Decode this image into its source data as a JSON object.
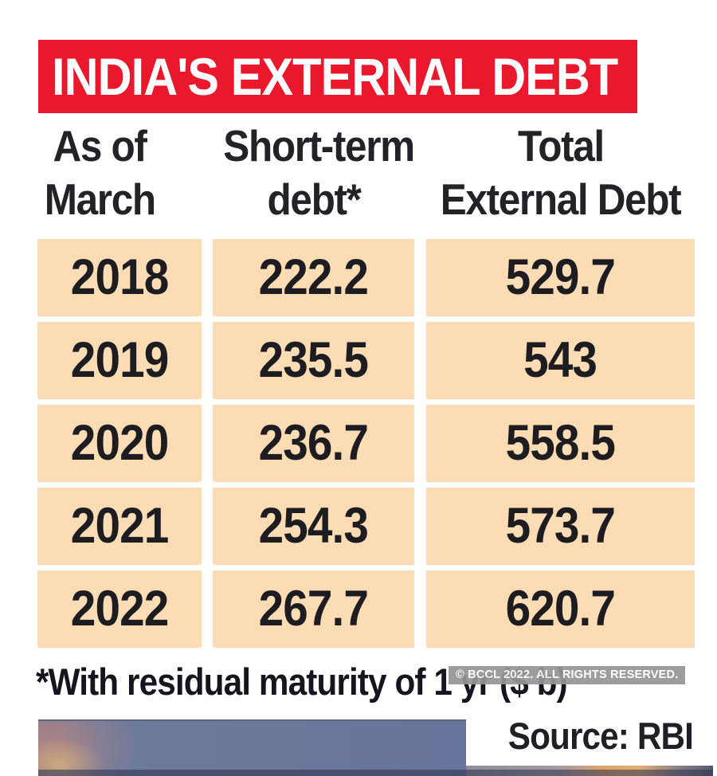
{
  "title": "INDIA'S EXTERNAL DEBT",
  "table": {
    "columns": [
      {
        "line1": "As of",
        "line2": "March"
      },
      {
        "line1": "Short-term",
        "line2": "debt*"
      },
      {
        "line1": "Total",
        "line2": "External Debt"
      }
    ],
    "rows": [
      {
        "year": "2018",
        "short_term": "222.2",
        "total": "529.7"
      },
      {
        "year": "2019",
        "short_term": "235.5",
        "total": "543"
      },
      {
        "year": "2020",
        "short_term": "236.7",
        "total": "558.5"
      },
      {
        "year": "2021",
        "short_term": "254.3",
        "total": "573.7"
      },
      {
        "year": "2022",
        "short_term": "267.7",
        "total": "620.7"
      }
    ]
  },
  "footnote": "*With residual maturity of 1 yr ($ b)",
  "source": "Source: RBI",
  "watermark": "© BCCL 2022. ALL RIGHTS RESERVED.",
  "colors": {
    "accent": "#e9182d",
    "cellBg": "#fbdcb4",
    "headerText": "#232327",
    "cellText": "#1d1d21",
    "titleText": "#ffffff",
    "watermarkBg": "#969696",
    "watermarkText": "#ffffff"
  },
  "chart_data": {
    "type": "table",
    "title": "INDIA'S EXTERNAL DEBT",
    "category_label": "As of March",
    "categories": [
      "2018",
      "2019",
      "2020",
      "2021",
      "2022"
    ],
    "series": [
      {
        "name": "Short-term debt*",
        "values": [
          222.2,
          235.5,
          236.7,
          254.3,
          267.7
        ]
      },
      {
        "name": "Total External Debt",
        "values": [
          529.7,
          543,
          558.5,
          573.7,
          620.7
        ]
      }
    ],
    "unit": "$ b",
    "footnote": "*With residual maturity of 1 yr ($ b)",
    "source": "Source: RBI"
  }
}
